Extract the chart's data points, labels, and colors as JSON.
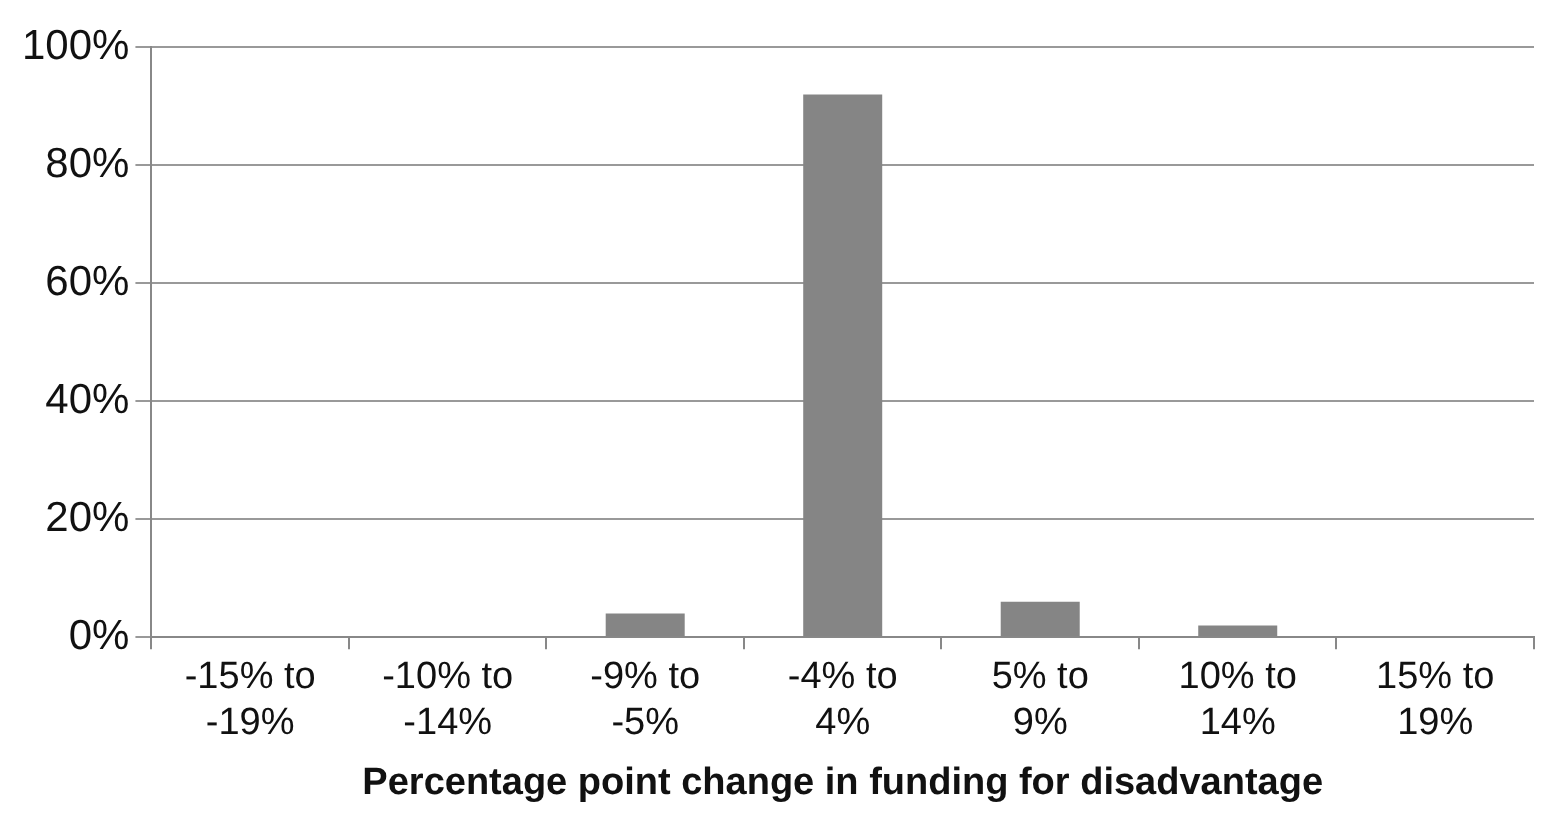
{
  "chart_data": {
    "type": "bar",
    "xlabel": "Percentage point change in funding for disadvantage",
    "categories": [
      "-15% to -19%",
      "-10% to -14%",
      "-9% to -5%",
      "-4% to 4%",
      "5% to 9%",
      "10% to 14%",
      "15% to 19%"
    ],
    "values": [
      0,
      0,
      4,
      92,
      6,
      2,
      0
    ],
    "color": "#858585",
    "ylim": [
      0,
      100
    ],
    "yticks": [
      {
        "value": 0,
        "label": "0%"
      },
      {
        "value": 20,
        "label": "20%"
      },
      {
        "value": 40,
        "label": "40%"
      },
      {
        "value": 60,
        "label": "60%"
      },
      {
        "value": 80,
        "label": "80%"
      },
      {
        "value": 100,
        "label": "100%"
      }
    ],
    "grid": "y",
    "legend": false
  }
}
